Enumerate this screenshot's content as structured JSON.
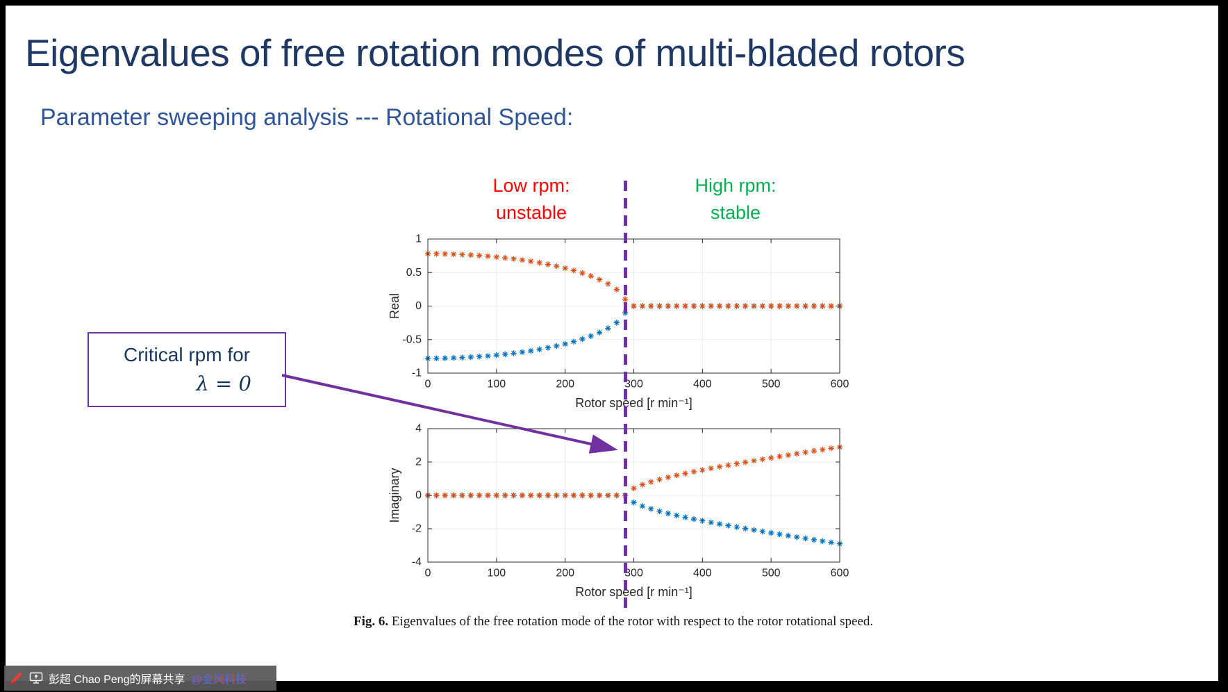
{
  "slide": {
    "title": "Eigenvalues of free rotation modes of multi-bladed rotors",
    "subtitle": "Parameter sweeping analysis --- Rotational Speed:",
    "annotations": {
      "low_rpm": {
        "line1": "Low rpm:",
        "line2": "unstable",
        "color": "#FF0000"
      },
      "high_rpm": {
        "line1": "High rpm:",
        "line2": "stable",
        "color": "#00B050"
      }
    },
    "callout": {
      "line1": "Critical rpm for",
      "line2": "λ = 0"
    },
    "caption": {
      "label": "Fig. 6.",
      "text": "Eigenvalues of the free rotation mode of the rotor with respect to the rotor rotational speed."
    },
    "critical_rpm": 290
  },
  "share_bar": {
    "text": "彭超 Chao Peng的屏幕共享",
    "watermark": "@金风科技",
    "icons": [
      "pen-icon",
      "screen-share-icon"
    ]
  },
  "colors": {
    "title_navy": "#1F3864",
    "subtitle_blue": "#2F5597",
    "unstable_red": "#FF0000",
    "stable_green": "#00B050",
    "accent_purple": "#7030A0",
    "series_orange": "#D95319",
    "series_blue": "#0072BD"
  },
  "chart_data": [
    {
      "type": "scatter",
      "marker": "*",
      "line_style": "none",
      "grid": true,
      "xlabel": "Rotor speed [r min⁻¹]",
      "ylabel": "Real",
      "xlim": [
        0,
        600
      ],
      "ylim": [
        -1,
        1
      ],
      "xticks": [
        0,
        100,
        200,
        300,
        400,
        500,
        600
      ],
      "yticks": [
        -1,
        -0.5,
        0,
        0.5,
        1
      ],
      "critical_speed": 290,
      "x": [
        0,
        12.5,
        25,
        37.5,
        50,
        62.5,
        75,
        87.5,
        100,
        112.5,
        125,
        137.5,
        150,
        162.5,
        175,
        187.5,
        200,
        212.5,
        225,
        237.5,
        250,
        262.5,
        275,
        287.5,
        300,
        312.5,
        325,
        337.5,
        350,
        362.5,
        375,
        387.5,
        400,
        412.5,
        425,
        437.5,
        450,
        462.5,
        475,
        487.5,
        500,
        512.5,
        525,
        537.5,
        550,
        562.5,
        575,
        587.5,
        600
      ],
      "series": [
        {
          "name": "eigenvalue-2-real",
          "color": "#0072BD",
          "values": [
            -0.78,
            -0.779,
            -0.777,
            -0.773,
            -0.768,
            -0.762,
            -0.753,
            -0.744,
            -0.732,
            -0.719,
            -0.704,
            -0.687,
            -0.668,
            -0.646,
            -0.622,
            -0.595,
            -0.565,
            -0.531,
            -0.492,
            -0.448,
            -0.395,
            -0.332,
            -0.248,
            -0.102,
            0,
            0,
            0,
            0,
            0,
            0,
            0,
            0,
            0,
            0,
            0,
            0,
            0,
            0,
            0,
            0,
            0,
            0,
            0,
            0,
            0,
            0,
            0,
            0,
            0
          ]
        },
        {
          "name": "eigenvalue-1-real",
          "color": "#D95319",
          "values": [
            0.78,
            0.779,
            0.777,
            0.773,
            0.768,
            0.762,
            0.753,
            0.744,
            0.732,
            0.719,
            0.704,
            0.687,
            0.668,
            0.646,
            0.622,
            0.595,
            0.565,
            0.531,
            0.492,
            0.448,
            0.395,
            0.332,
            0.248,
            0.102,
            0,
            0,
            0,
            0,
            0,
            0,
            0,
            0,
            0,
            0,
            0,
            0,
            0,
            0,
            0,
            0,
            0,
            0,
            0,
            0,
            0,
            0,
            0,
            0,
            0
          ]
        }
      ]
    },
    {
      "type": "scatter",
      "marker": "*",
      "line_style": "none",
      "grid": true,
      "xlabel": "Rotor speed [r min⁻¹]",
      "ylabel": "Imaginary",
      "xlim": [
        0,
        600
      ],
      "ylim": [
        -4,
        4
      ],
      "xticks": [
        0,
        100,
        200,
        300,
        400,
        500,
        600
      ],
      "yticks": [
        -4,
        -2,
        0,
        2,
        4
      ],
      "critical_speed": 290,
      "x": [
        0,
        12.5,
        25,
        37.5,
        50,
        62.5,
        75,
        87.5,
        100,
        112.5,
        125,
        137.5,
        150,
        162.5,
        175,
        187.5,
        200,
        212.5,
        225,
        237.5,
        250,
        262.5,
        275,
        287.5,
        300,
        312.5,
        325,
        337.5,
        350,
        362.5,
        375,
        387.5,
        400,
        412.5,
        425,
        437.5,
        450,
        462.5,
        475,
        487.5,
        500,
        512.5,
        525,
        537.5,
        550,
        562.5,
        575,
        587.5,
        600
      ],
      "series": [
        {
          "name": "eigenvalue-2-imaginary",
          "color": "#0072BD",
          "values": [
            0,
            0,
            0,
            0,
            0,
            0,
            0,
            0,
            0,
            0,
            0,
            0,
            0,
            0,
            0,
            0,
            0,
            0,
            0,
            0,
            0,
            0,
            0,
            0,
            -0.424,
            -0.643,
            -0.81,
            -0.953,
            -1.082,
            -1.201,
            -1.312,
            -1.419,
            -1.521,
            -1.62,
            -1.715,
            -1.809,
            -1.9,
            -1.989,
            -2.077,
            -2.163,
            -2.249,
            -2.333,
            -2.416,
            -2.499,
            -2.58,
            -2.661,
            -2.741,
            -2.821,
            -2.9
          ]
        },
        {
          "name": "eigenvalue-1-imaginary",
          "color": "#D95319",
          "values": [
            0,
            0,
            0,
            0,
            0,
            0,
            0,
            0,
            0,
            0,
            0,
            0,
            0,
            0,
            0,
            0,
            0,
            0,
            0,
            0,
            0,
            0,
            0,
            0,
            0.424,
            0.643,
            0.81,
            0.953,
            1.082,
            1.201,
            1.312,
            1.419,
            1.521,
            1.62,
            1.715,
            1.809,
            1.9,
            1.989,
            2.077,
            2.163,
            2.249,
            2.333,
            2.416,
            2.499,
            2.58,
            2.661,
            2.741,
            2.821,
            2.9
          ]
        }
      ]
    }
  ]
}
